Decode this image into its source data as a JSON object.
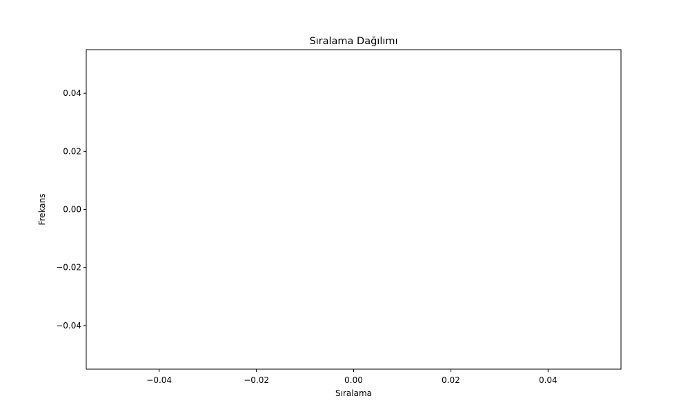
{
  "chart_data": {
    "type": "histogram",
    "title": "Sıralama Dağılımı",
    "xlabel": "Sıralama",
    "ylabel": "Frekans",
    "xlim": [
      -0.055,
      0.055
    ],
    "ylim": [
      -0.055,
      0.055
    ],
    "x_ticks": [
      -0.04,
      -0.02,
      0.0,
      0.02,
      0.04
    ],
    "x_tick_labels": [
      "−0.04",
      "−0.02",
      "0.00",
      "0.02",
      "0.04"
    ],
    "y_ticks": [
      -0.04,
      -0.02,
      0.0,
      0.02,
      0.04
    ],
    "y_tick_labels": [
      "−0.04",
      "−0.02",
      "0.00",
      "0.02",
      "0.04"
    ],
    "series": [],
    "grid": false,
    "frame_color": "#000000",
    "background_color": "#ffffff"
  }
}
